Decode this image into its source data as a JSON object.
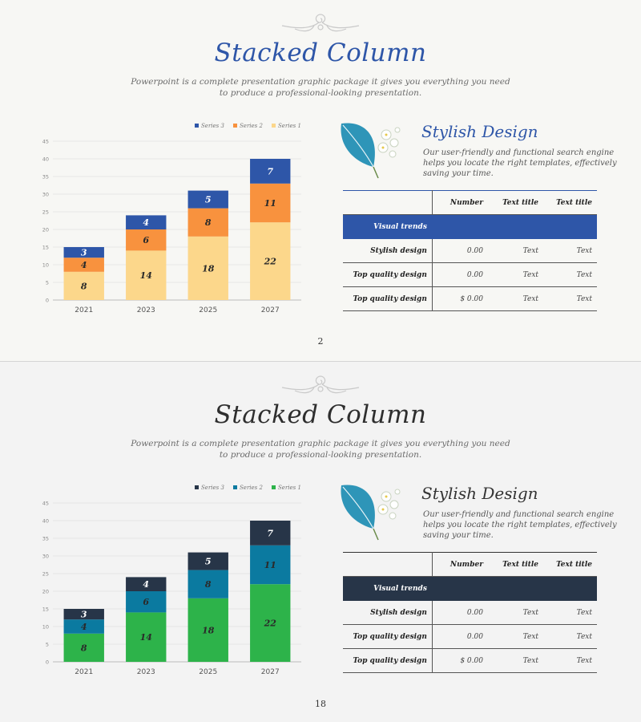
{
  "slides": [
    {
      "title": "Stacked Column",
      "subtitle_lines": [
        "Powerpoint is a complete presentation graphic package it gives you everything you need",
        "to produce a professional-looking presentation."
      ],
      "colors": {
        "title": "#2e56a8",
        "band": "#2e56a8",
        "table_top": "#2e56a8",
        "card_title": "#2e56a8"
      },
      "card": {
        "title": "Stylish Design",
        "text_lines": [
          "Our user-friendly and functional search engine",
          "helps you locate the right templates, effectively",
          "saving your time."
        ]
      },
      "table": {
        "headers": [
          "",
          "Number",
          "Text title",
          "Text title"
        ],
        "band_label": "Visual trends",
        "rows": [
          [
            "Stylish design",
            "0.00",
            "Text",
            "Text"
          ],
          [
            "Top quality design",
            "0.00",
            "Text",
            "Text"
          ],
          [
            "Top quality design",
            "$ 0.00",
            "Text",
            "Text"
          ]
        ]
      },
      "page_number": "2",
      "chart_data": {
        "type": "bar",
        "stacked": true,
        "categories": [
          "2021",
          "2023",
          "2025",
          "2027"
        ],
        "series": [
          {
            "name": "Series 1",
            "values": [
              8,
              14,
              18,
              22
            ],
            "color": "#fcd78b"
          },
          {
            "name": "Series 2",
            "values": [
              4,
              6,
              8,
              11
            ],
            "color": "#f8923e"
          },
          {
            "name": "Series 3",
            "values": [
              3,
              4,
              5,
              7
            ],
            "color": "#2e56a8"
          }
        ],
        "legend_order": [
          "Series 3",
          "Series 2",
          "Series 1"
        ],
        "legend_position": "top-right",
        "yticks": [
          "0",
          "5",
          "10",
          "15",
          "20",
          "25",
          "30",
          "35",
          "40",
          "45"
        ],
        "ylim": [
          0,
          45
        ],
        "grid": true,
        "data_labels": true
      }
    },
    {
      "title": "Stacked Column",
      "subtitle_lines": [
        "Powerpoint is a complete presentation graphic package it gives you everything you need",
        "to produce a professional-looking presentation."
      ],
      "colors": {
        "title": "#2e2e2e",
        "band": "#273548",
        "table_top": "#333333",
        "card_title": "#333333"
      },
      "card": {
        "title": "Stylish Design",
        "text_lines": [
          "Our user-friendly and functional search engine",
          "helps you locate the right templates, effectively",
          "saving your time."
        ]
      },
      "table": {
        "headers": [
          "",
          "Number",
          "Text title",
          "Text title"
        ],
        "band_label": "Visual trends",
        "rows": [
          [
            "Stylish design",
            "0.00",
            "Text",
            "Text"
          ],
          [
            "Top quality design",
            "0.00",
            "Text",
            "Text"
          ],
          [
            "Top quality design",
            "$ 0.00",
            "Text",
            "Text"
          ]
        ]
      },
      "page_number": "18",
      "chart_data": {
        "type": "bar",
        "stacked": true,
        "categories": [
          "2021",
          "2023",
          "2025",
          "2027"
        ],
        "series": [
          {
            "name": "Series 1",
            "values": [
              8,
              14,
              18,
              22
            ],
            "color": "#2db34a"
          },
          {
            "name": "Series 2",
            "values": [
              4,
              6,
              8,
              11
            ],
            "color": "#0b7aa0"
          },
          {
            "name": "Series 3",
            "values": [
              3,
              4,
              5,
              7
            ],
            "color": "#273548"
          }
        ],
        "legend_order": [
          "Series 3",
          "Series 2",
          "Series 1"
        ],
        "legend_position": "top-right",
        "yticks": [
          "0",
          "5",
          "10",
          "15",
          "20",
          "25",
          "30",
          "35",
          "40",
          "45"
        ],
        "ylim": [
          0,
          45
        ],
        "grid": true,
        "data_labels": true
      }
    }
  ]
}
